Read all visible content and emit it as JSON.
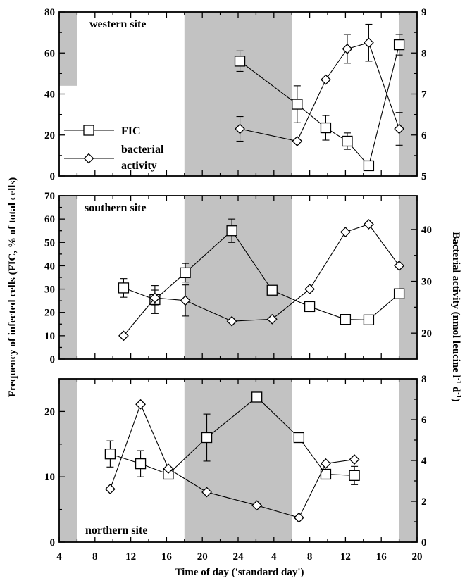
{
  "chart_data": {
    "type": "line",
    "xlabel": "Time of day ('standard day')",
    "ylabel_left": "Frequency of infected cells (FIC, % of total cells)",
    "ylabel_right": "Bacterial activity (nmol leucine l-1 d-1)",
    "x_ticks": [
      "4",
      "8",
      "12",
      "16",
      "20",
      "24",
      "4",
      "8",
      "12",
      "16",
      "20"
    ],
    "legend": {
      "placement": "left, top panel",
      "entries": [
        {
          "name": "FIC",
          "marker": "square"
        },
        {
          "name": "bacterial activity",
          "marker": "diamond"
        }
      ]
    },
    "panels": [
      {
        "title": "western site",
        "left_ylim": [
          0,
          80
        ],
        "left_ticks": [
          "0",
          "20",
          "40",
          "60",
          "80"
        ],
        "right_ylim": [
          5,
          9
        ],
        "right_ticks": [
          "5",
          "6",
          "7",
          "8",
          "9"
        ],
        "shaded_x": [
          [
            4,
            6,
            0.45
          ],
          [
            18,
            30
          ],
          [
            42,
            44
          ]
        ],
        "series": [
          {
            "name": "FIC",
            "axis": "left",
            "marker": "square",
            "x": [
              24.2,
              30.6,
              33.8,
              36.2,
              38.6,
              42
            ],
            "y": [
              56,
              35,
              23.5,
              17,
              5,
              64
            ],
            "err_up": [
              5,
              9,
              6,
              4,
              0,
              5
            ],
            "err_down": [
              5,
              9,
              6,
              4,
              0,
              5
            ]
          },
          {
            "name": "bacterial activity",
            "axis": "right",
            "marker": "diamond",
            "x": [
              24.2,
              30.6,
              33.8,
              36.2,
              38.6,
              42
            ],
            "y": [
              6.15,
              5.85,
              7.35,
              8.1,
              8.25,
              6.15
            ],
            "err_up": [
              0.3,
              0,
              0,
              0.35,
              0.45,
              0.4
            ],
            "err_down": [
              0.3,
              0,
              0,
              0.35,
              0.45,
              0.4
            ]
          }
        ]
      },
      {
        "title": "southern site",
        "left_ylim": [
          0,
          70
        ],
        "left_ticks": [
          "0",
          "10",
          "20",
          "30",
          "40",
          "50",
          "60",
          "70"
        ],
        "right_ylim": [
          15,
          46.5
        ],
        "right_ticks": [
          "20",
          "30",
          "40"
        ],
        "shaded_x": [
          [
            4,
            6
          ],
          [
            18,
            30
          ],
          [
            42,
            44
          ]
        ],
        "series": [
          {
            "name": "FIC",
            "axis": "left",
            "marker": "square",
            "x": [
              11.2,
              14.7,
              18.1,
              23.3,
              27.8,
              32,
              36,
              38.6,
              42
            ],
            "y": [
              30.5,
              25.5,
              37,
              55,
              29.5,
              22.5,
              17,
              16.8,
              28
            ],
            "err_up": [
              4,
              6,
              4,
              5,
              0,
              0,
              0,
              0,
              0
            ],
            "err_down": [
              4,
              6,
              4,
              5,
              0,
              0,
              0,
              0,
              0
            ]
          },
          {
            "name": "bacterial activity",
            "axis": "right",
            "marker": "diamond",
            "x": [
              11.2,
              14.7,
              18.1,
              23.3,
              27.8,
              32,
              36,
              38.6,
              42
            ],
            "y": [
              19.5,
              26.8,
              26.3,
              22.3,
              22.7,
              28.5,
              39.5,
              41,
              33
            ],
            "err_up": [
              0,
              1.5,
              3,
              0,
              0,
              0,
              0,
              0,
              0
            ],
            "err_down": [
              0,
              1.5,
              3,
              0,
              0,
              0,
              0,
              0,
              0
            ]
          }
        ]
      },
      {
        "title": "northern site",
        "left_ylim": [
          0,
          25
        ],
        "left_ticks": [
          "0",
          "10",
          "20"
        ],
        "right_ylim": [
          0,
          8
        ],
        "right_ticks": [
          "0",
          "2",
          "4",
          "6",
          "8"
        ],
        "shaded_x": [
          [
            4,
            6
          ],
          [
            18,
            30
          ],
          [
            42,
            44
          ]
        ],
        "series": [
          {
            "name": "FIC",
            "axis": "left",
            "marker": "square",
            "x": [
              9.7,
              13.1,
              16.2,
              20.5,
              26.1,
              30.8,
              33.8,
              37
            ],
            "y": [
              13.5,
              12,
              10.4,
              16,
              22.2,
              16,
              10.4,
              10.2
            ],
            "err_up": [
              2,
              2,
              0,
              3.6,
              0,
              0,
              0,
              1.4
            ],
            "err_down": [
              2,
              2,
              0,
              3.6,
              0,
              0,
              0,
              1.4
            ]
          },
          {
            "name": "bacterial activity",
            "axis": "right",
            "marker": "diamond",
            "x": [
              9.7,
              13.1,
              16.2,
              20.5,
              26.1,
              30.8,
              33.8,
              37
            ],
            "y": [
              2.6,
              6.75,
              3.6,
              2.45,
              1.8,
              1.2,
              3.85,
              4.05
            ],
            "err_up": [
              0,
              0,
              0,
              0,
              0,
              0,
              0,
              0
            ],
            "err_down": [
              0,
              0,
              0,
              0,
              0,
              0,
              0,
              0
            ]
          }
        ]
      }
    ]
  }
}
